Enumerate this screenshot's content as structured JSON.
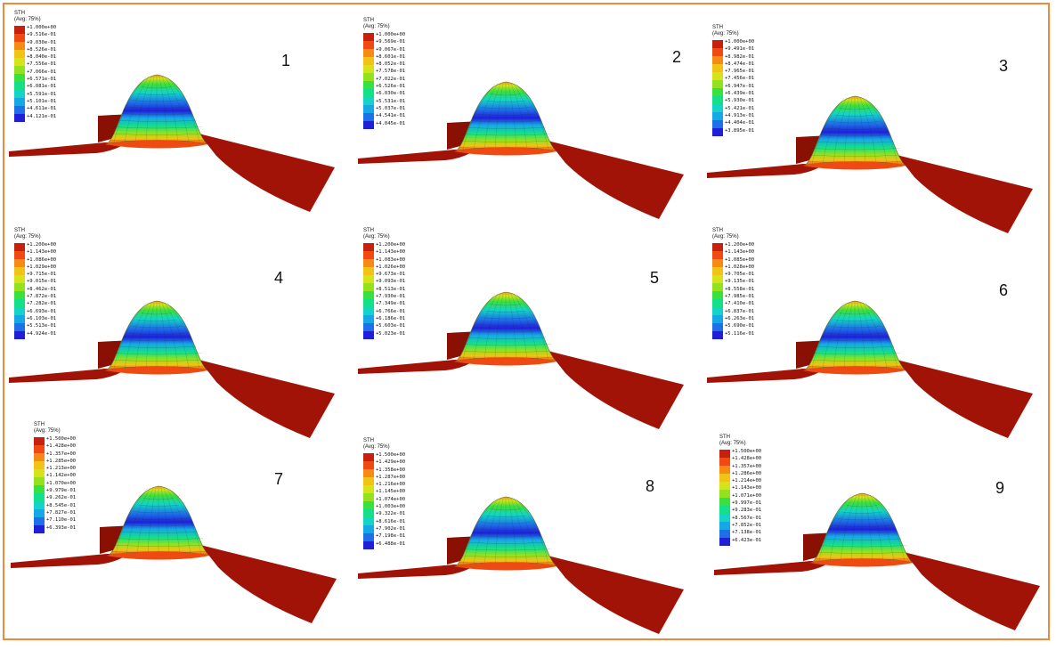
{
  "figure": {
    "border_color": "#ef8a3a",
    "colormap": [
      "#1f1fd8",
      "#1f6fe8",
      "#16a7e6",
      "#13d4c7",
      "#15e08a",
      "#38e040",
      "#93e21d",
      "#d6e21a",
      "#f2c317",
      "#f58a14",
      "#ef4a12",
      "#c8200e"
    ],
    "sheet_color": "#a01306",
    "panels": [
      {
        "number": "1",
        "variable": "STH",
        "averaging": "(Avg: 75%)",
        "legend_values": [
          "+1.000e+00",
          "+9.516e-01",
          "+9.030e-01",
          "+8.526e-01",
          "+8.040e-01",
          "+7.556e-01",
          "+7.066e-01",
          "+6.571e-01",
          "+6.081e-01",
          "+5.591e-01",
          "+5.101e-01",
          "+4.611e-01",
          "+4.121e-01"
        ]
      },
      {
        "number": "2",
        "variable": "STH",
        "averaging": "(Avg: 75%)",
        "legend_values": [
          "+1.000e+00",
          "+9.569e-01",
          "+9.067e-01",
          "+8.601e-01",
          "+8.052e-01",
          "+7.578e-01",
          "+7.022e-01",
          "+6.526e-01",
          "+6.030e-01",
          "+5.531e-01",
          "+5.037e-01",
          "+4.541e-01",
          "+4.045e-01"
        ]
      },
      {
        "number": "3",
        "variable": "STH",
        "averaging": "(Avg: 75%)",
        "legend_values": [
          "+1.000e+00",
          "+9.491e-01",
          "+8.982e-01",
          "+8.474e-01",
          "+7.965e-01",
          "+7.456e-01",
          "+6.947e-01",
          "+6.439e-01",
          "+5.930e-01",
          "+5.421e-01",
          "+4.913e-01",
          "+4.404e-01",
          "+3.895e-01"
        ]
      },
      {
        "number": "4",
        "variable": "STH",
        "averaging": "(Avg: 75%)",
        "legend_values": [
          "+1.200e+00",
          "+1.143e+00",
          "+1.086e+00",
          "+1.029e+00",
          "+9.715e-01",
          "+9.015e-01",
          "+8.462e-01",
          "+7.872e-01",
          "+7.282e-01",
          "+6.693e-01",
          "+6.103e-01",
          "+5.513e-01",
          "+4.924e-01"
        ]
      },
      {
        "number": "5",
        "variable": "STH",
        "averaging": "(Avg: 75%)",
        "legend_values": [
          "+1.200e+00",
          "+1.143e+00",
          "+1.083e+00",
          "+1.026e+00",
          "+9.673e-01",
          "+9.093e-01",
          "+8.513e-01",
          "+7.930e-01",
          "+7.349e-01",
          "+6.766e-01",
          "+6.186e-01",
          "+5.603e-01",
          "+5.023e-01"
        ]
      },
      {
        "number": "6",
        "variable": "STH",
        "averaging": "(Avg: 75%)",
        "legend_values": [
          "+1.200e+00",
          "+1.143e+00",
          "+1.085e+00",
          "+1.028e+00",
          "+9.705e-01",
          "+9.135e-01",
          "+8.558e-01",
          "+7.985e-01",
          "+7.410e-01",
          "+6.837e-01",
          "+6.263e-01",
          "+5.690e-01",
          "+5.116e-01"
        ]
      },
      {
        "number": "7",
        "variable": "STH",
        "averaging": "(Avg: 75%)",
        "legend_values": [
          "+1.500e+00",
          "+1.428e+00",
          "+1.357e+00",
          "+1.285e+00",
          "+1.213e+00",
          "+1.142e+00",
          "+1.070e+00",
          "+9.979e-01",
          "+9.262e-01",
          "+8.545e-01",
          "+7.827e-01",
          "+7.110e-01",
          "+6.393e-01"
        ]
      },
      {
        "number": "8",
        "variable": "STH",
        "averaging": "(Avg: 75%)",
        "legend_values": [
          "+1.500e+00",
          "+1.429e+00",
          "+1.358e+00",
          "+1.287e+00",
          "+1.216e+00",
          "+1.145e+00",
          "+1.074e+00",
          "+1.003e+00",
          "+9.322e-01",
          "+8.616e-01",
          "+7.902e-01",
          "+7.198e-01",
          "+6.488e-01"
        ]
      },
      {
        "number": "9",
        "variable": "STH",
        "averaging": "(Avg: 75%)",
        "legend_values": [
          "+1.500e+00",
          "+1.428e+00",
          "+1.357e+00",
          "+1.286e+00",
          "+1.214e+00",
          "+1.143e+00",
          "+1.071e+00",
          "+9.997e-01",
          "+9.283e-01",
          "+8.567e-01",
          "+7.852e-01",
          "+7.138e-01",
          "+6.423e-01"
        ]
      }
    ]
  }
}
